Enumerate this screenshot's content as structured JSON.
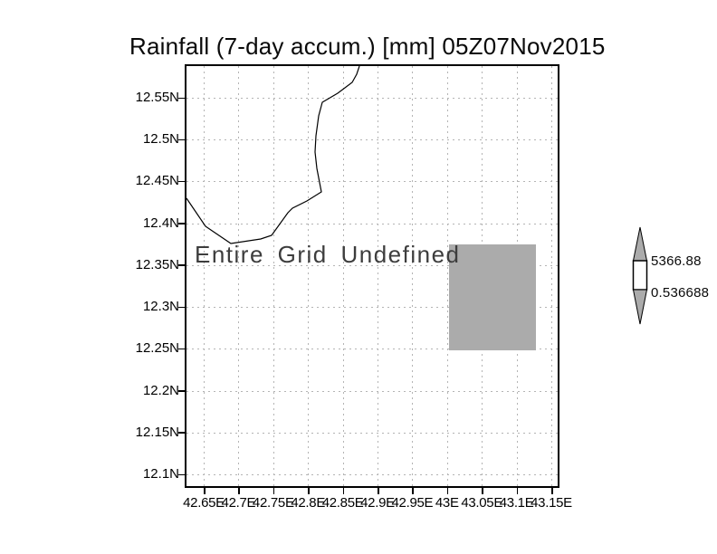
{
  "title": "Rainfall (7-day accum.) [mm] 05Z07Nov2015",
  "plot": {
    "undefined_message": "Entire Grid Undefined"
  },
  "axes": {
    "y_labels": [
      "12.55N",
      "12.5N",
      "12.45N",
      "12.4N",
      "12.35N",
      "12.3N",
      "12.25N",
      "12.2N",
      "12.15N",
      "12.1N"
    ],
    "x_labels": [
      "42.65E",
      "42.7E",
      "42.75E",
      "42.8E",
      "42.85E",
      "42.9E",
      "42.95E",
      "43E",
      "43.05E",
      "43.1E",
      "43.15E"
    ]
  },
  "colorbar": {
    "max_label": "5366.88",
    "min_label": "0.536688"
  },
  "colors": {
    "shade_gray": "#ababab",
    "grid_gray": "#b4b4b4",
    "frame_black": "#000000"
  },
  "chart_data": {
    "type": "heatmap",
    "title": "Rainfall (7-day accum.) [mm] 05Z07Nov2015",
    "variable": "Rainfall (7-day accum.) [mm]",
    "valid_time": "05Z07Nov2015",
    "x_ticks": [
      "42.65E",
      "42.7E",
      "42.75E",
      "42.8E",
      "42.85E",
      "42.9E",
      "42.95E",
      "43E",
      "43.05E",
      "43.1E",
      "43.15E"
    ],
    "y_ticks": [
      "12.55N",
      "12.5N",
      "12.45N",
      "12.4N",
      "12.35N",
      "12.3N",
      "12.25N",
      "12.2N",
      "12.15N",
      "12.1N"
    ],
    "xlim_deg_east": [
      42.63,
      43.16
    ],
    "ylim_deg_north": [
      12.09,
      12.59
    ],
    "grid": "dotted",
    "legend_position": "right-colorbar",
    "annotation": "Entire Grid Undefined",
    "data_status": "entire grid undefined; single gray shaded cell drawn",
    "shaded_cell": {
      "lon_range_east": [
        43.0,
        43.125
      ],
      "lat_range_north": [
        12.25,
        12.375
      ],
      "color": "#ababab"
    },
    "colorbar": {
      "min": 0.536688,
      "max": 5366.88,
      "tick_labels": [
        "5366.88",
        "0.536688"
      ]
    },
    "coastline_visible": true
  }
}
